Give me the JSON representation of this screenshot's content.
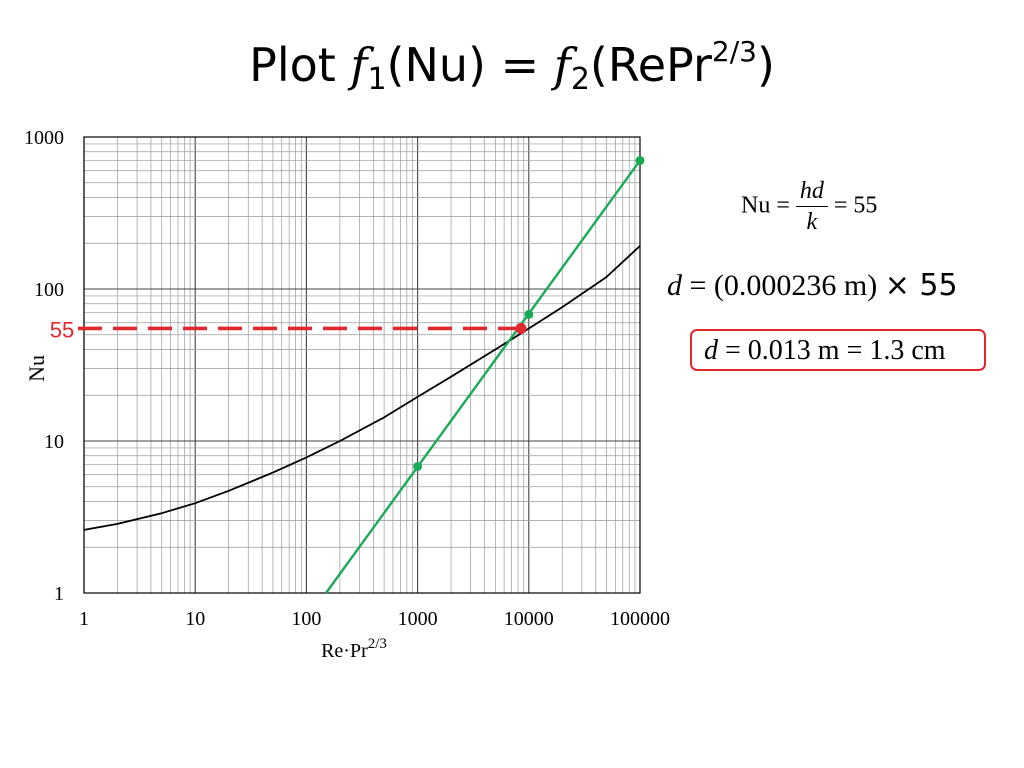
{
  "title": {
    "prefix": "Plot ",
    "f": "f",
    "sub1": "1",
    "nu_part": "(Nu) = ",
    "sub2": "2",
    "repr_part": "(RePr",
    "sup": "2/3",
    "close": ")"
  },
  "chart_data": {
    "type": "line",
    "xscale": "log",
    "yscale": "log",
    "xlim": [
      1,
      100000
    ],
    "ylim": [
      1,
      1000
    ],
    "grid": true,
    "xlabel": "Re·Pr",
    "xlabel_sup": "2/3",
    "ylabel": "Nu",
    "x_tick_labels": [
      "1",
      "10",
      "100",
      "1000",
      "10000",
      "100000"
    ],
    "y_tick_labels": [
      "1",
      "10",
      "100",
      "1000"
    ],
    "series": [
      {
        "color": "#000000",
        "points": [
          [
            1,
            2.6
          ],
          [
            2,
            2.85
          ],
          [
            5,
            3.35
          ],
          [
            10,
            3.9
          ],
          [
            20,
            4.7
          ],
          [
            50,
            6.2
          ],
          [
            100,
            7.8
          ],
          [
            200,
            10.0
          ],
          [
            500,
            14.3
          ],
          [
            1000,
            19.5
          ],
          [
            2000,
            26.5
          ],
          [
            5000,
            40.0
          ],
          [
            10000,
            55.0
          ],
          [
            20000,
            76.0
          ],
          [
            50000,
            120.0
          ],
          [
            100000,
            192.0
          ]
        ]
      },
      {
        "color": "#1aaa55",
        "points": [
          [
            150,
            1.0
          ],
          [
            100000,
            700.0
          ]
        ],
        "markers": [
          [
            1000,
            6.8
          ],
          [
            10000,
            68.0
          ],
          [
            100000,
            700.0
          ]
        ]
      }
    ],
    "intersection": {
      "x": 8500,
      "y": 55,
      "color": "#e0282e"
    },
    "reference_line": {
      "y": 55,
      "label": "55",
      "color": "#e0282e",
      "style": "dashed"
    }
  },
  "equations": {
    "nu_lhs": "Nu =",
    "nu_num": "hd",
    "nu_den": "k",
    "nu_rhs": "= 55",
    "d_var": "d",
    "d_rest": " = (0.000236 m) ",
    "times": "×",
    "d_factor": " 55",
    "result_var": "d",
    "result_rest": " = 0.013 m = 1.3 cm",
    "result_border_color": "#e0282e"
  }
}
